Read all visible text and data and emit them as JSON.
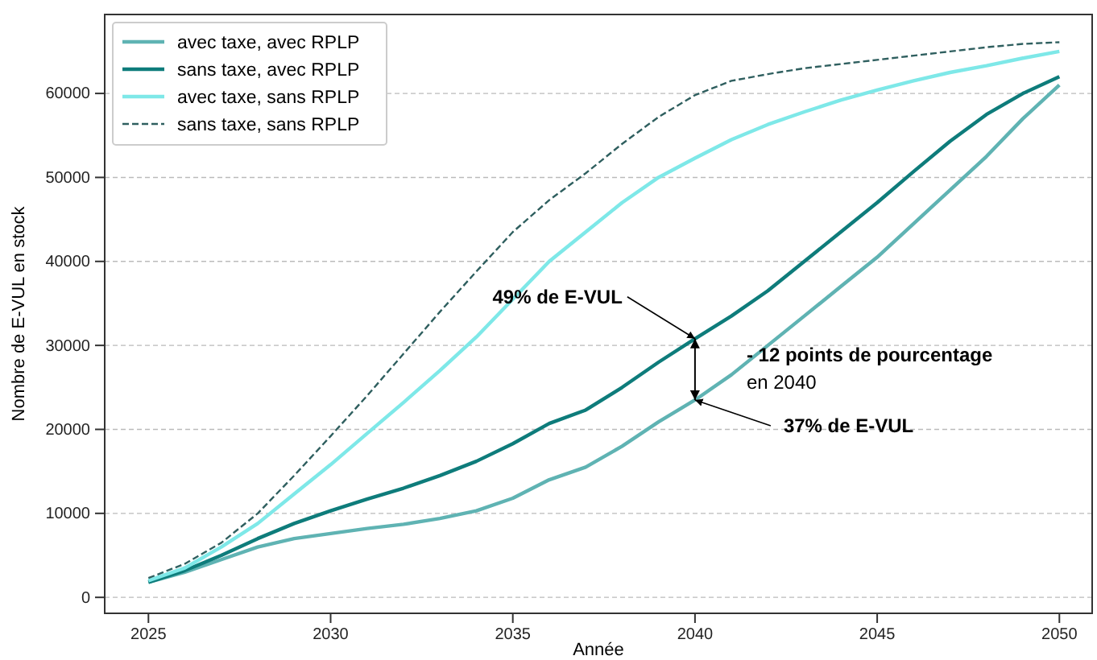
{
  "chart_data": {
    "type": "line",
    "xlabel": "Année",
    "ylabel": "Nombre de E-VUL en stock",
    "x": [
      2025,
      2026,
      2027,
      2028,
      2029,
      2030,
      2031,
      2032,
      2033,
      2034,
      2035,
      2036,
      2037,
      2038,
      2039,
      2040,
      2041,
      2042,
      2043,
      2044,
      2045,
      2046,
      2047,
      2048,
      2049,
      2050
    ],
    "series": [
      {
        "name": "avec taxe, avec RPLP",
        "color": "#5fb3b3",
        "line_style": "solid",
        "values": [
          1800,
          3000,
          4500,
          6000,
          7000,
          7600,
          8200,
          8700,
          9400,
          10300,
          11800,
          14000,
          15500,
          18000,
          20900,
          23500,
          26500,
          30000,
          33500,
          37000,
          40500,
          44500,
          48500,
          52500,
          57000,
          61000
        ]
      },
      {
        "name": "sans taxe, avec RPLP",
        "color": "#0e7c7b",
        "line_style": "solid",
        "values": [
          1800,
          3200,
          5000,
          7000,
          8800,
          10300,
          11700,
          13000,
          14500,
          16200,
          18300,
          20700,
          22300,
          25000,
          28000,
          30800,
          33500,
          36500,
          40000,
          43500,
          47000,
          50700,
          54300,
          57500,
          60000,
          62000
        ]
      },
      {
        "name": "avec taxe, sans RPLP",
        "color": "#7ee8e8",
        "line_style": "solid",
        "values": [
          2000,
          3500,
          6000,
          8800,
          12300,
          15800,
          19500,
          23200,
          27000,
          31000,
          35500,
          40000,
          43500,
          47000,
          50000,
          52300,
          54500,
          56300,
          57800,
          59200,
          60400,
          61500,
          62500,
          63300,
          64200,
          65000
        ]
      },
      {
        "name": "sans taxe, sans RPLP",
        "color": "#2f5f5f",
        "line_style": "dashed",
        "values": [
          2300,
          4000,
          6500,
          10000,
          14500,
          19200,
          24000,
          29000,
          34000,
          38800,
          43500,
          47300,
          50500,
          54000,
          57200,
          59800,
          61500,
          62300,
          63000,
          63500,
          64000,
          64500,
          65000,
          65500,
          65900,
          66100
        ]
      }
    ],
    "xlim": [
      2023.8,
      2050.9
    ],
    "xticks": [
      2025,
      2030,
      2035,
      2040,
      2045,
      2050
    ],
    "ylim": [
      -1900,
      69400
    ],
    "yticks": [
      0,
      10000,
      20000,
      30000,
      40000,
      50000,
      60000
    ],
    "grid": "y",
    "legend": "top left",
    "marker": "none",
    "annotations": [
      {
        "text": "49% de E-VUL",
        "x": 2040,
        "y": 30800
      },
      {
        "text": "37% de E-VUL",
        "x": 2040,
        "y": 23500
      },
      "- 12 points de pourcentage\nen 2040"
    ]
  }
}
